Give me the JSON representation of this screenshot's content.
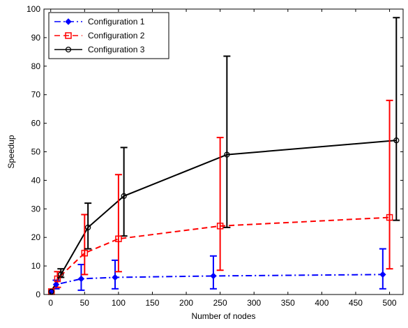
{
  "chart_data": {
    "type": "line",
    "title": "",
    "xlabel": "Number of nodes",
    "ylabel": "Speedup",
    "xlim": [
      -10,
      520
    ],
    "ylim": [
      0,
      100
    ],
    "xticks": [
      0,
      50,
      100,
      150,
      200,
      250,
      300,
      350,
      400,
      450,
      500
    ],
    "yticks": [
      0,
      10,
      20,
      30,
      40,
      50,
      60,
      70,
      80,
      90,
      100
    ],
    "grid": false,
    "legend_position": "top-left",
    "series": [
      {
        "name": "Configuration 1",
        "color": "#0000ff",
        "line_style": "dash-dot",
        "marker": "diamond",
        "points": [
          {
            "x": 1,
            "y": 1
          },
          {
            "x": 8,
            "y": 3.5,
            "err_low": 2,
            "err_high": 5
          },
          {
            "x": 45,
            "y": 5.5,
            "err_low": 1.5,
            "err_high": 10.5
          },
          {
            "x": 95,
            "y": 6,
            "err_low": 2,
            "err_high": 12
          },
          {
            "x": 240,
            "y": 6.5,
            "err_low": 2,
            "err_high": 13.5
          },
          {
            "x": 490,
            "y": 7,
            "err_low": 2,
            "err_high": 16
          }
        ]
      },
      {
        "name": "Configuration 2",
        "color": "#ff0000",
        "line_style": "dashed",
        "marker": "square",
        "points": [
          {
            "x": 1,
            "y": 1
          },
          {
            "x": 10,
            "y": 5.5,
            "err_low": 2.5,
            "err_high": 8
          },
          {
            "x": 50,
            "y": 14.5,
            "err_low": 7,
            "err_high": 28
          },
          {
            "x": 100,
            "y": 19.5,
            "err_low": 8,
            "err_high": 42
          },
          {
            "x": 250,
            "y": 24,
            "err_low": 8.5,
            "err_high": 55
          },
          {
            "x": 500,
            "y": 27,
            "err_low": 9,
            "err_high": 68
          }
        ]
      },
      {
        "name": "Configuration 3",
        "color": "#000000",
        "line_style": "solid",
        "marker": "circle",
        "points": [
          {
            "x": 1,
            "y": 1
          },
          {
            "x": 15,
            "y": 7,
            "err_low": 6,
            "err_high": 9
          },
          {
            "x": 55,
            "y": 23.5,
            "err_low": 16,
            "err_high": 32
          },
          {
            "x": 108,
            "y": 34.5,
            "err_low": 20.5,
            "err_high": 51.5
          },
          {
            "x": 260,
            "y": 49,
            "err_low": 23.5,
            "err_high": 83.5
          },
          {
            "x": 510,
            "y": 54,
            "err_low": 26,
            "err_high": 97
          }
        ]
      }
    ]
  }
}
